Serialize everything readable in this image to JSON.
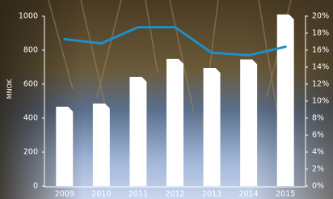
{
  "chart_data": {
    "type": "bar",
    "y_label": "MNOK",
    "categories": [
      "2009",
      "2010",
      "2011",
      "2012",
      "2013",
      "2014",
      "2015"
    ],
    "series": [
      {
        "type": "bar",
        "color": "#ffffff",
        "values": [
          467,
          486,
          643,
          748,
          695,
          745,
          1010
        ]
      },
      {
        "type": "line",
        "axis": "y2",
        "color": "#1e8fc8",
        "values": [
          17.3,
          16.8,
          18.7,
          18.7,
          15.7,
          15.4,
          16.4
        ]
      }
    ],
    "ylim": [
      0,
      1000
    ],
    "yticks": [
      0,
      200,
      400,
      600,
      800,
      1000
    ],
    "y2lim": [
      0,
      20
    ],
    "y2ticks": [
      {
        "value": 0,
        "label": "0%"
      },
      {
        "value": 2,
        "label": "2%"
      },
      {
        "value": 4,
        "label": "4%"
      },
      {
        "value": 6,
        "label": "6%"
      },
      {
        "value": 8,
        "label": "8%"
      },
      {
        "value": 10,
        "label": "10%"
      },
      {
        "value": 12,
        "label": "12%"
      },
      {
        "value": 14,
        "label": "14%"
      },
      {
        "value": 16,
        "label": "16%"
      },
      {
        "value": 18,
        "label": "18%"
      },
      {
        "value": 20,
        "label": "20%"
      }
    ]
  }
}
